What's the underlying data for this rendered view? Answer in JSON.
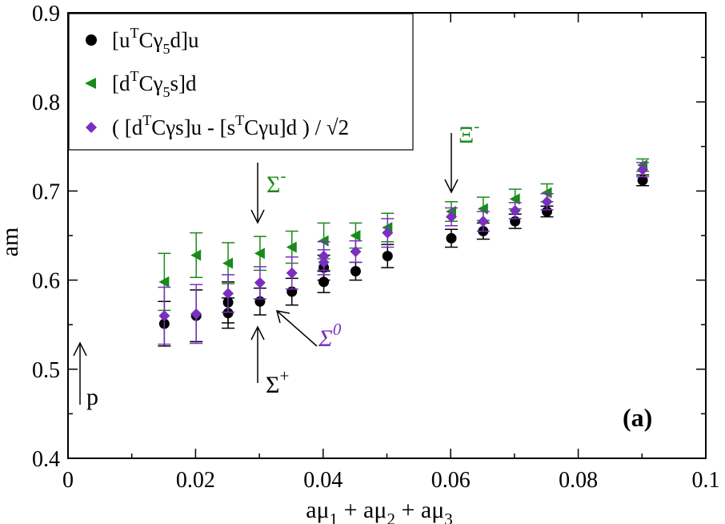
{
  "chart_data": {
    "type": "scatter",
    "xlabel": {
      "base": "aμ",
      "s1": "1",
      "mid1": " + aμ",
      "s2": "2",
      "mid2": " + aμ",
      "s3": "3"
    },
    "ylabel": "am",
    "xlim": [
      0,
      0.1
    ],
    "ylim": [
      0.4,
      0.9
    ],
    "xticks": [
      0,
      0.02,
      0.04,
      0.06,
      0.08,
      0.1
    ],
    "xtick_labels": [
      "0",
      "0.02",
      "0.04",
      "0.06",
      "0.08",
      "0.1"
    ],
    "yticks": [
      0.4,
      0.5,
      0.6,
      0.7,
      0.8,
      0.9
    ],
    "ytick_labels": [
      "0.4",
      "0.5",
      "0.6",
      "0.7",
      "0.8",
      "0.9"
    ],
    "grid": false,
    "legend_position": "top-left",
    "panel_label": "(a)",
    "legend": [
      {
        "parts": [
          "[u",
          "T",
          "Cγ",
          "5",
          "d]u"
        ]
      },
      {
        "parts": [
          "[d",
          "T",
          "Cγ",
          "5",
          "s]d"
        ]
      },
      {
        "parts": [
          "( [d",
          "T",
          "Cγs]u - [s",
          "T",
          "Cγu]d ) / √2"
        ]
      }
    ],
    "series": [
      {
        "name": "[uTCγ5d]u",
        "marker": "circle",
        "color": "#000000",
        "x": [
          0.0151,
          0.0201,
          0.0251,
          0.0301,
          0.0351,
          0.0401,
          0.0451,
          0.0501,
          0.0601,
          0.0651,
          0.0701,
          0.0751,
          0.0901
        ],
        "y": [
          0.551,
          0.56,
          0.563,
          0.576,
          0.587,
          0.598,
          0.61,
          0.627,
          0.647,
          0.655,
          0.666,
          0.677,
          0.712
        ],
        "err": [
          0.025,
          0.029,
          0.017,
          0.015,
          0.015,
          0.012,
          0.01,
          0.013,
          0.01,
          0.009,
          0.008,
          0.006,
          0.006
        ],
        "extra_points": [
          {
            "x": 0.0251,
            "y": 0.575,
            "err": 0.023
          },
          {
            "x": 0.0401,
            "y": 0.614,
            "err": 0.014
          }
        ]
      },
      {
        "name": "[dTCγ5s]d",
        "marker": "triangle-left",
        "color": "#1a8a1a",
        "x": [
          0.0151,
          0.0201,
          0.0251,
          0.0301,
          0.0351,
          0.0401,
          0.0451,
          0.0501,
          0.0601,
          0.0651,
          0.0701,
          0.0751,
          0.0901
        ],
        "y": [
          0.598,
          0.628,
          0.619,
          0.63,
          0.637,
          0.644,
          0.65,
          0.659,
          0.677,
          0.68,
          0.691,
          0.698,
          0.729
        ],
        "err": [
          0.032,
          0.025,
          0.023,
          0.019,
          0.018,
          0.02,
          0.014,
          0.016,
          0.011,
          0.013,
          0.011,
          0.01,
          0.007
        ]
      },
      {
        "name": "( [dTCγs]u - [sTCγu]d ) / √2",
        "marker": "diamond",
        "color": "#7b2fc0",
        "x": [
          0.0151,
          0.0201,
          0.0251,
          0.0301,
          0.0351,
          0.0401,
          0.0451,
          0.0501,
          0.0601,
          0.0651,
          0.0701,
          0.0751,
          0.0901
        ],
        "y": [
          0.56,
          0.562,
          0.585,
          0.597,
          0.608,
          0.627,
          0.632,
          0.653,
          0.671,
          0.666,
          0.678,
          0.688,
          0.724
        ],
        "err": [
          0.032,
          0.033,
          0.021,
          0.018,
          0.018,
          0.016,
          0.012,
          0.016,
          0.01,
          0.011,
          0.009,
          0.009,
          0.008
        ],
        "extra_points": [
          {
            "x": 0.0401,
            "y": 0.62,
            "err": 0.014
          }
        ]
      }
    ],
    "annotations": [
      {
        "id": "sigma-minus",
        "base": "Σ",
        "sup": "-",
        "color": "#1a8a1a",
        "arrow_color": "#000000",
        "x": 0.03,
        "direction": "down"
      },
      {
        "id": "xi-minus",
        "base": "Ξ",
        "sup": "-",
        "color": "#1a8a1a",
        "arrow_color": "#000000",
        "x": 0.06,
        "direction": "down"
      },
      {
        "id": "sigma-plus",
        "base": "Σ",
        "sup": "+",
        "color": "#000000",
        "arrow_color": "#000000",
        "x": 0.03,
        "direction": "up"
      },
      {
        "id": "sigma-zero",
        "base": "Σ",
        "sup": "0",
        "color": "#7b2fc0",
        "arrow_color": "#000000",
        "x": 0.032,
        "direction": "diagonal"
      },
      {
        "id": "proton",
        "base": "p",
        "color": "#000000",
        "arrow_color": "#000000",
        "x": 0.002,
        "direction": "up"
      }
    ]
  }
}
